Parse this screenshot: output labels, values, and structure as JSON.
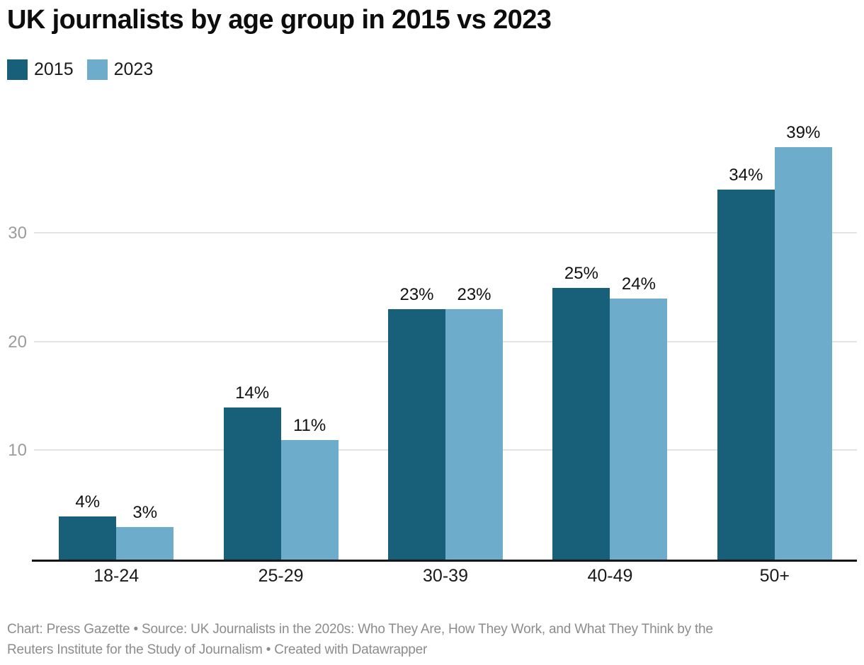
{
  "title": "UK journalists by age group in 2015 vs 2023",
  "chart_data": {
    "type": "bar",
    "title": "UK journalists by age group in 2015 vs 2023",
    "categories": [
      "18-24",
      "25-29",
      "30-39",
      "40-49",
      "50+"
    ],
    "series": [
      {
        "name": "2015",
        "color": "#18607a",
        "values": [
          4,
          14,
          23,
          25,
          34
        ]
      },
      {
        "name": "2023",
        "color": "#6dacca",
        "values": [
          3,
          11,
          23,
          24,
          39
        ]
      }
    ],
    "value_suffix": "%",
    "value_labels": {
      "2015": [
        "4%",
        "14%",
        "23%",
        "25%",
        "34%"
      ],
      "2023": [
        "3%",
        "11%",
        "23%",
        "24%",
        "39%"
      ]
    },
    "xlabel": "",
    "ylabel": "",
    "yticks": [
      10,
      20,
      30
    ],
    "ylim": [
      0,
      40
    ],
    "grid": true,
    "legend_position": "top-left"
  },
  "footer": {
    "line1": "Chart: Press Gazette • Source: UK Journalists in the 2020s: Who They Are, How They Work, and What They Think by the",
    "line2": "Reuters Institute for the Study of Journalism • Created with Datawrapper"
  }
}
